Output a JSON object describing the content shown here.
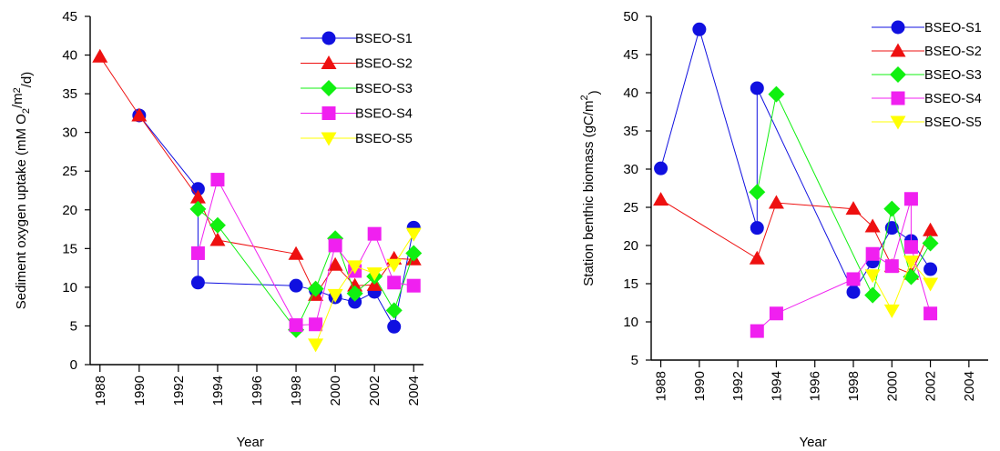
{
  "figure": {
    "xlabel": "Year"
  },
  "chart_data": [
    {
      "type": "scatter",
      "title": "",
      "xlabel": "Year",
      "ylabel": "Sediment oxygen uptake (mM O2/m2/d)",
      "ylabel_parts": [
        "Sediment oxygen uptake (mM O",
        "2",
        "/m",
        "2",
        "/d)"
      ],
      "xlim": [
        1987.5,
        2004.5
      ],
      "ylim": [
        0,
        45
      ],
      "xticks": [
        1988,
        1990,
        1992,
        1994,
        1996,
        1998,
        2000,
        2002,
        2004
      ],
      "yticks": [
        0,
        5,
        10,
        15,
        20,
        25,
        30,
        35,
        40,
        45
      ],
      "grid": false,
      "legend_position": "top-right",
      "series": [
        {
          "name": "BSEO-S1",
          "color": "#1010e0",
          "marker": "circle",
          "points": [
            [
              1990,
              32.2
            ],
            [
              1993,
              22.7
            ],
            [
              1993,
              10.6
            ],
            [
              1998,
              10.2
            ],
            [
              1999,
              9.6
            ],
            [
              2000,
              8.7
            ],
            [
              2001,
              8.1
            ],
            [
              2002,
              9.4
            ],
            [
              2003,
              4.9
            ],
            [
              2004,
              17.7
            ]
          ]
        },
        {
          "name": "BSEO-S2",
          "color": "#ee1010",
          "marker": "triangle-up",
          "points": [
            [
              1988,
              39.8
            ],
            [
              1990,
              32.2
            ],
            [
              1993,
              21.6
            ],
            [
              1994,
              16.1
            ],
            [
              1998,
              14.3
            ],
            [
              1999,
              9.0
            ],
            [
              2000,
              12.9
            ],
            [
              2001,
              10.2
            ],
            [
              2002,
              10.3
            ],
            [
              2003,
              13.7
            ],
            [
              2004,
              13.6
            ]
          ]
        },
        {
          "name": "BSEO-S3",
          "color": "#10f010",
          "marker": "diamond",
          "points": [
            [
              1993,
              20.1
            ],
            [
              1994,
              18.0
            ],
            [
              1998,
              4.5
            ],
            [
              1999,
              9.8
            ],
            [
              2000,
              16.3
            ],
            [
              2001,
              9.2
            ],
            [
              2002,
              11.4
            ],
            [
              2003,
              7.0
            ],
            [
              2004,
              14.4
            ]
          ]
        },
        {
          "name": "BSEO-S4",
          "color": "#f020f0",
          "marker": "square",
          "points": [
            [
              1993,
              14.4
            ],
            [
              1994,
              23.9
            ],
            [
              1998,
              5.1
            ],
            [
              1999,
              5.2
            ],
            [
              2000,
              15.4
            ],
            [
              2001,
              12.1
            ],
            [
              2002,
              16.9
            ],
            [
              2003,
              10.6
            ],
            [
              2004,
              10.2
            ]
          ]
        },
        {
          "name": "BSEO-S5",
          "color": "#ffff00",
          "marker": "triangle-down",
          "points": [
            [
              1999,
              2.6
            ],
            [
              2000,
              9.0
            ],
            [
              2001,
              12.7
            ],
            [
              2002,
              11.8
            ],
            [
              2003,
              12.9
            ],
            [
              2004,
              16.9
            ]
          ]
        }
      ]
    },
    {
      "type": "scatter",
      "title": "",
      "xlabel": "Year",
      "ylabel": "Station benthic biomass (gC/m2)",
      "ylabel_parts": [
        "Station benthic biomass (gC/m",
        "",
        "",
        "2",
        ")"
      ],
      "xlim": [
        1987.5,
        2005
      ],
      "ylim": [
        5,
        50
      ],
      "xticks": [
        1988,
        1990,
        1992,
        1994,
        1996,
        1998,
        2000,
        2002,
        2004
      ],
      "yticks": [
        5,
        10,
        15,
        20,
        25,
        30,
        35,
        40,
        45,
        50
      ],
      "grid": false,
      "legend_position": "top-right",
      "series": [
        {
          "name": "BSEO-S1",
          "color": "#1010e0",
          "marker": "circle",
          "points": [
            [
              1988,
              30.1
            ],
            [
              1990,
              48.3
            ],
            [
              1993,
              22.3
            ],
            [
              1993,
              40.6
            ],
            [
              1998,
              13.9
            ],
            [
              1999,
              17.9
            ],
            [
              2000,
              22.3
            ],
            [
              2001,
              20.6
            ],
            [
              2002,
              16.9
            ]
          ]
        },
        {
          "name": "BSEO-S2",
          "color": "#ee1010",
          "marker": "triangle-up",
          "points": [
            [
              1988,
              26.0
            ],
            [
              1993,
              18.3
            ],
            [
              1994,
              25.6
            ],
            [
              1998,
              24.8
            ],
            [
              1999,
              22.5
            ],
            [
              2000,
              17.3
            ],
            [
              2001,
              16.3
            ],
            [
              2002,
              22.0
            ]
          ]
        },
        {
          "name": "BSEO-S3",
          "color": "#10f010",
          "marker": "diamond",
          "points": [
            [
              1993,
              27.0
            ],
            [
              1994,
              39.8
            ],
            [
              1999,
              13.5
            ],
            [
              2000,
              24.8
            ],
            [
              2001,
              15.9
            ],
            [
              2002,
              20.3
            ]
          ]
        },
        {
          "name": "BSEO-S4",
          "color": "#f020f0",
          "marker": "square",
          "points": [
            [
              1993,
              8.8
            ],
            [
              1994,
              11.1
            ],
            [
              1998,
              15.6
            ],
            [
              1999,
              18.9
            ],
            [
              2000,
              17.3
            ],
            [
              2001,
              26.1
            ],
            [
              2001,
              19.8
            ],
            [
              2002,
              11.1
            ]
          ]
        },
        {
          "name": "BSEO-S5",
          "color": "#ffff00",
          "marker": "triangle-down",
          "points": [
            [
              1999,
              16.1
            ],
            [
              2000,
              11.5
            ],
            [
              2001,
              17.9
            ],
            [
              2002,
              15.0
            ]
          ]
        }
      ]
    }
  ]
}
